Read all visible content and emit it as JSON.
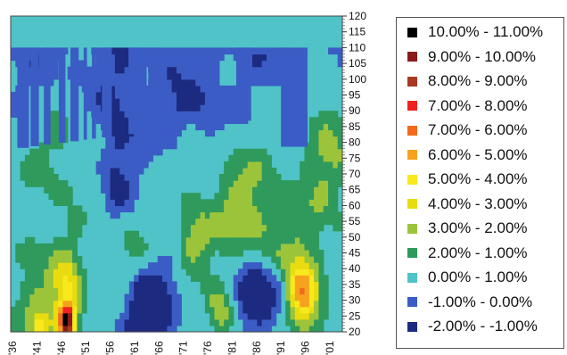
{
  "chart_data": {
    "type": "heatmap",
    "title": "",
    "xlabel": "",
    "ylabel": "",
    "x_ticks": [
      "'36",
      "'41",
      "'46",
      "'51",
      "'56",
      "'61",
      "'66",
      "'71",
      "'76",
      "'81",
      "'86",
      "'91",
      "'96",
      "'01"
    ],
    "y_ticks": [
      20,
      25,
      30,
      35,
      40,
      45,
      50,
      55,
      60,
      65,
      70,
      75,
      80,
      85,
      90,
      95,
      100,
      105,
      110,
      115,
      120
    ],
    "ylim": [
      20,
      120
    ],
    "legend_placement": "right",
    "legend": [
      {
        "label": "10.00% - 11.00%",
        "color": "#000000"
      },
      {
        "label": "9.00% - 10.00%",
        "color": "#8b1a1a"
      },
      {
        "label": "8.00% - 9.00%",
        "color": "#a83a22"
      },
      {
        "label": "7.00% - 8.00%",
        "color": "#ee2222"
      },
      {
        "label": "7.00% - 6.00%",
        "color": "#f26a1e"
      },
      {
        "label": "6.00% - 5.00%",
        "color": "#f6a21e"
      },
      {
        "label": "5.00% - 4.00%",
        "color": "#f8e81c"
      },
      {
        "label": "4.00% - 3.00%",
        "color": "#e8dc10"
      },
      {
        "label": "3.00% - 2.00%",
        "color": "#9cc43a"
      },
      {
        "label": "2.00% - 1.00%",
        "color": "#2f9a5c"
      },
      {
        "label": "0.00% - 1.00%",
        "color": "#4fc3c8"
      },
      {
        "label": "-1.00% - 0.00%",
        "color": "#3b5cc4"
      },
      {
        "label": "-2.00% - -1.00%",
        "color": "#1c2a80"
      }
    ]
  }
}
